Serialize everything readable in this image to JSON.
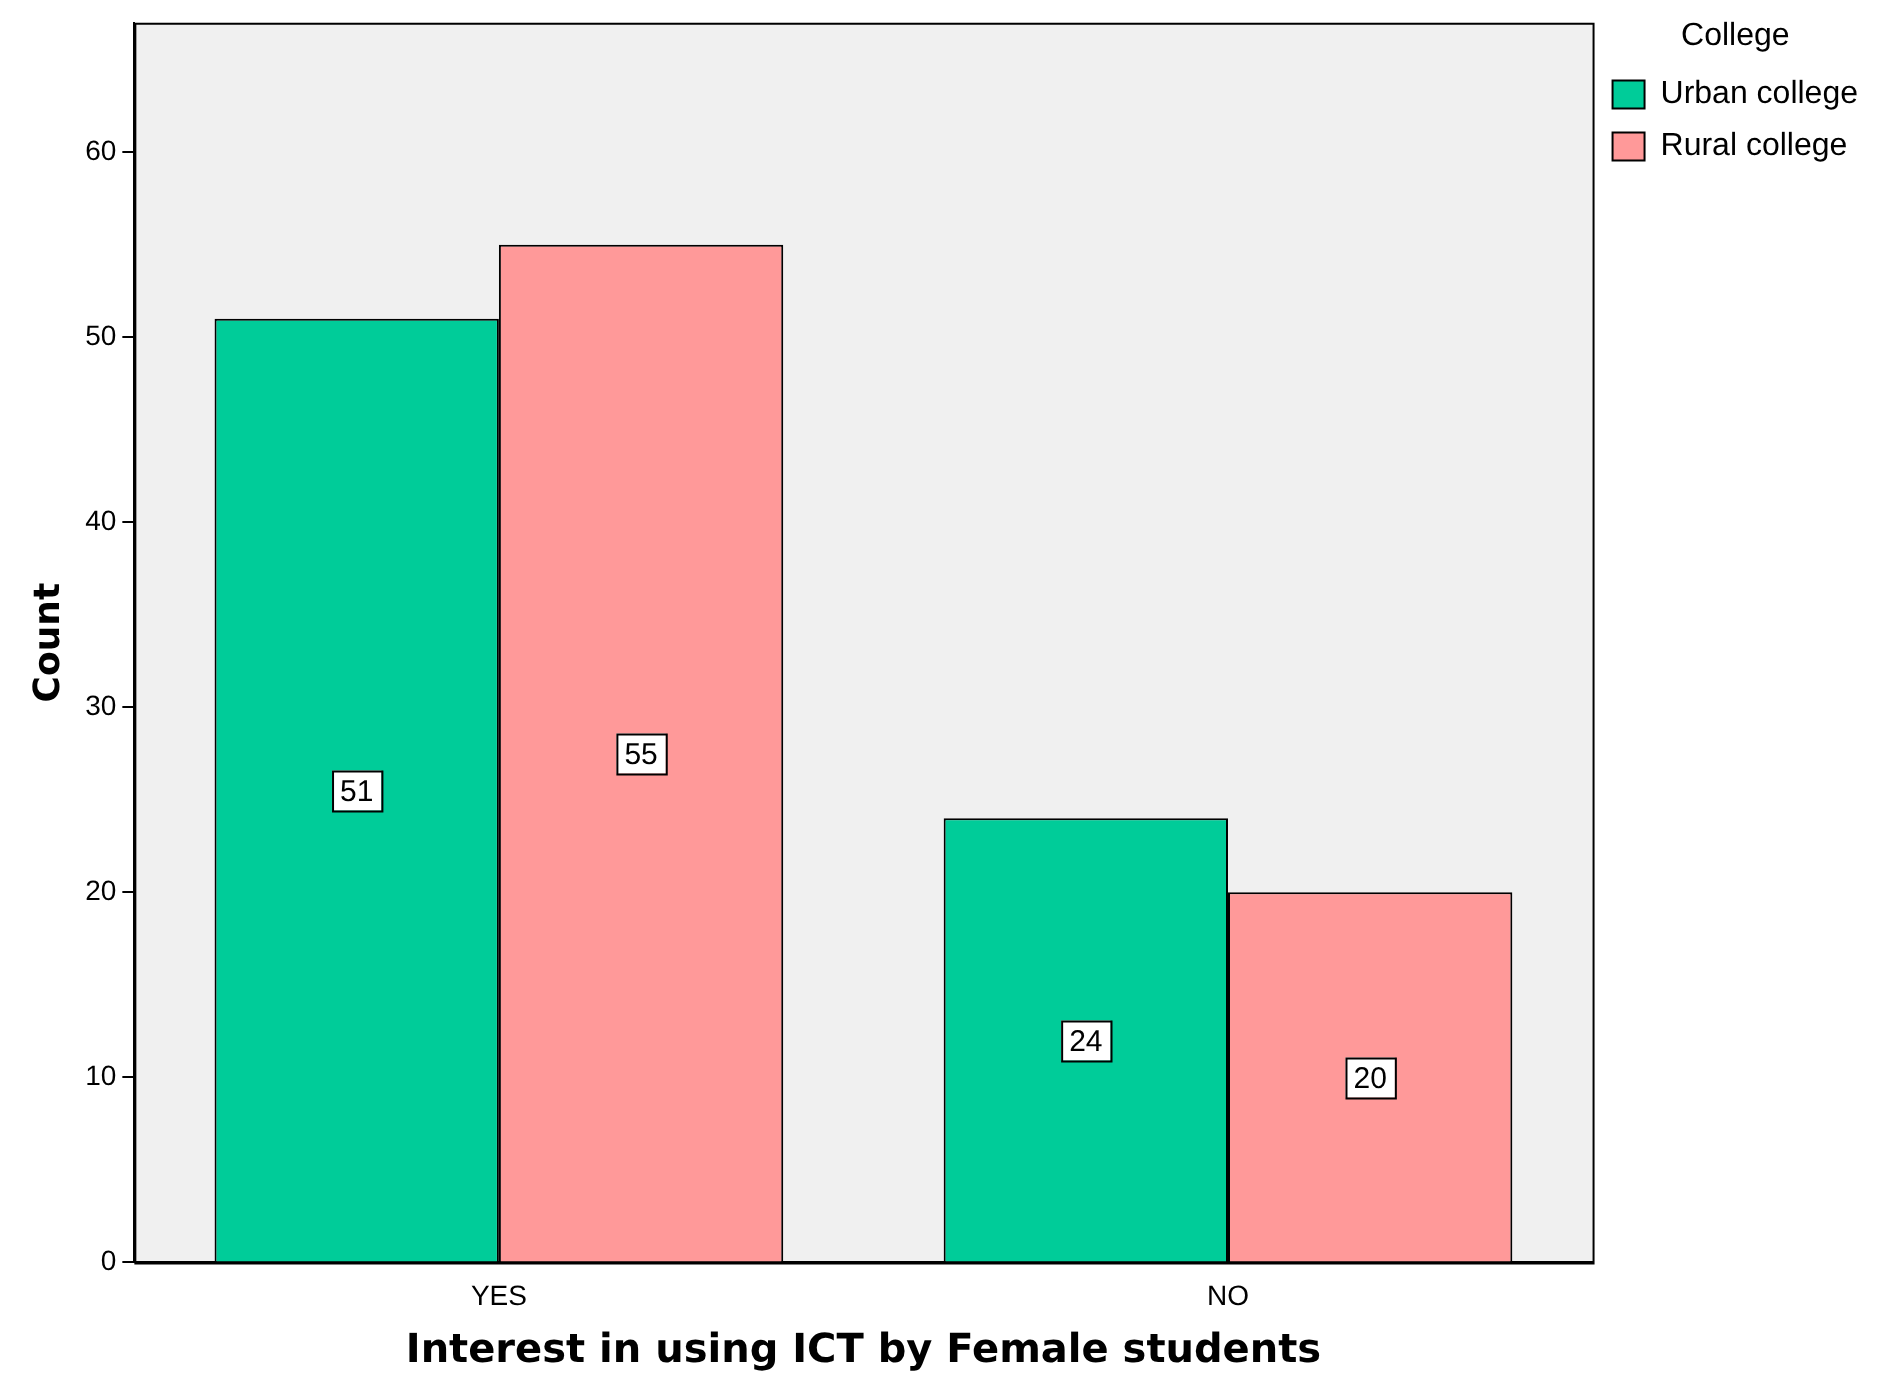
{
  "chart_data": {
    "type": "bar",
    "xlabel": "Interest in using ICT by Female students",
    "ylabel": "Count",
    "legend_title": "College",
    "categories": [
      "YES",
      "NO"
    ],
    "series": [
      {
        "name": "Urban college",
        "color": "#00cc99",
        "values": [
          51,
          24
        ]
      },
      {
        "name": "Rural college",
        "color": "#ff9999",
        "values": [
          55,
          20
        ]
      }
    ],
    "ylim": [
      0,
      67
    ],
    "yticks": [
      0,
      10,
      20,
      30,
      40,
      50,
      60
    ],
    "data_labels": true,
    "legend": "top right",
    "grid": false
  }
}
